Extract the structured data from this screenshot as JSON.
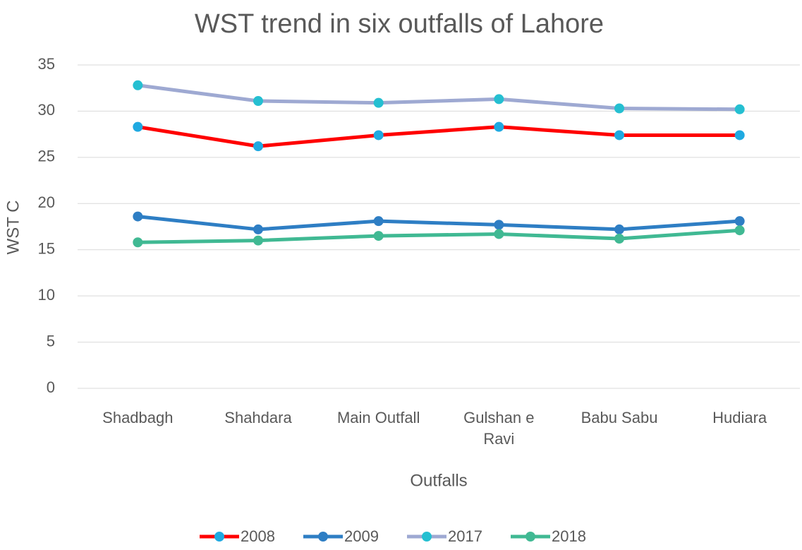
{
  "chart_data": {
    "type": "line",
    "title": "WST trend in six outfalls of Lahore",
    "x_label": "Outfalls",
    "y_label": "WST C",
    "categories": [
      "Shadbagh",
      "Shahdara",
      "Main Outfall",
      "Gulshan e Ravi",
      "Babu Sabu",
      "Hudiara"
    ],
    "series": [
      {
        "name": "2008",
        "color": "#ff0000",
        "marker_color": "#1fa9e1",
        "values": [
          28.3,
          26.2,
          27.4,
          28.3,
          27.4,
          27.4
        ]
      },
      {
        "name": "2009",
        "color": "#2e7ec4",
        "marker_color": "#2e7ec4",
        "values": [
          18.6,
          17.2,
          18.1,
          17.7,
          17.2,
          18.1
        ]
      },
      {
        "name": "2017",
        "color": "#9ea9d2",
        "marker_color": "#25bfd1",
        "values": [
          32.8,
          31.1,
          30.9,
          31.3,
          30.3,
          30.2
        ]
      },
      {
        "name": "2018",
        "color": "#40b993",
        "marker_color": "#40b993",
        "values": [
          15.8,
          16.0,
          16.5,
          16.7,
          16.2,
          17.1
        ]
      }
    ],
    "ylim": [
      0,
      35
    ],
    "yticks": [
      0,
      5,
      10,
      15,
      20,
      25,
      30,
      35
    ],
    "grid": true,
    "legend": "bottom"
  }
}
